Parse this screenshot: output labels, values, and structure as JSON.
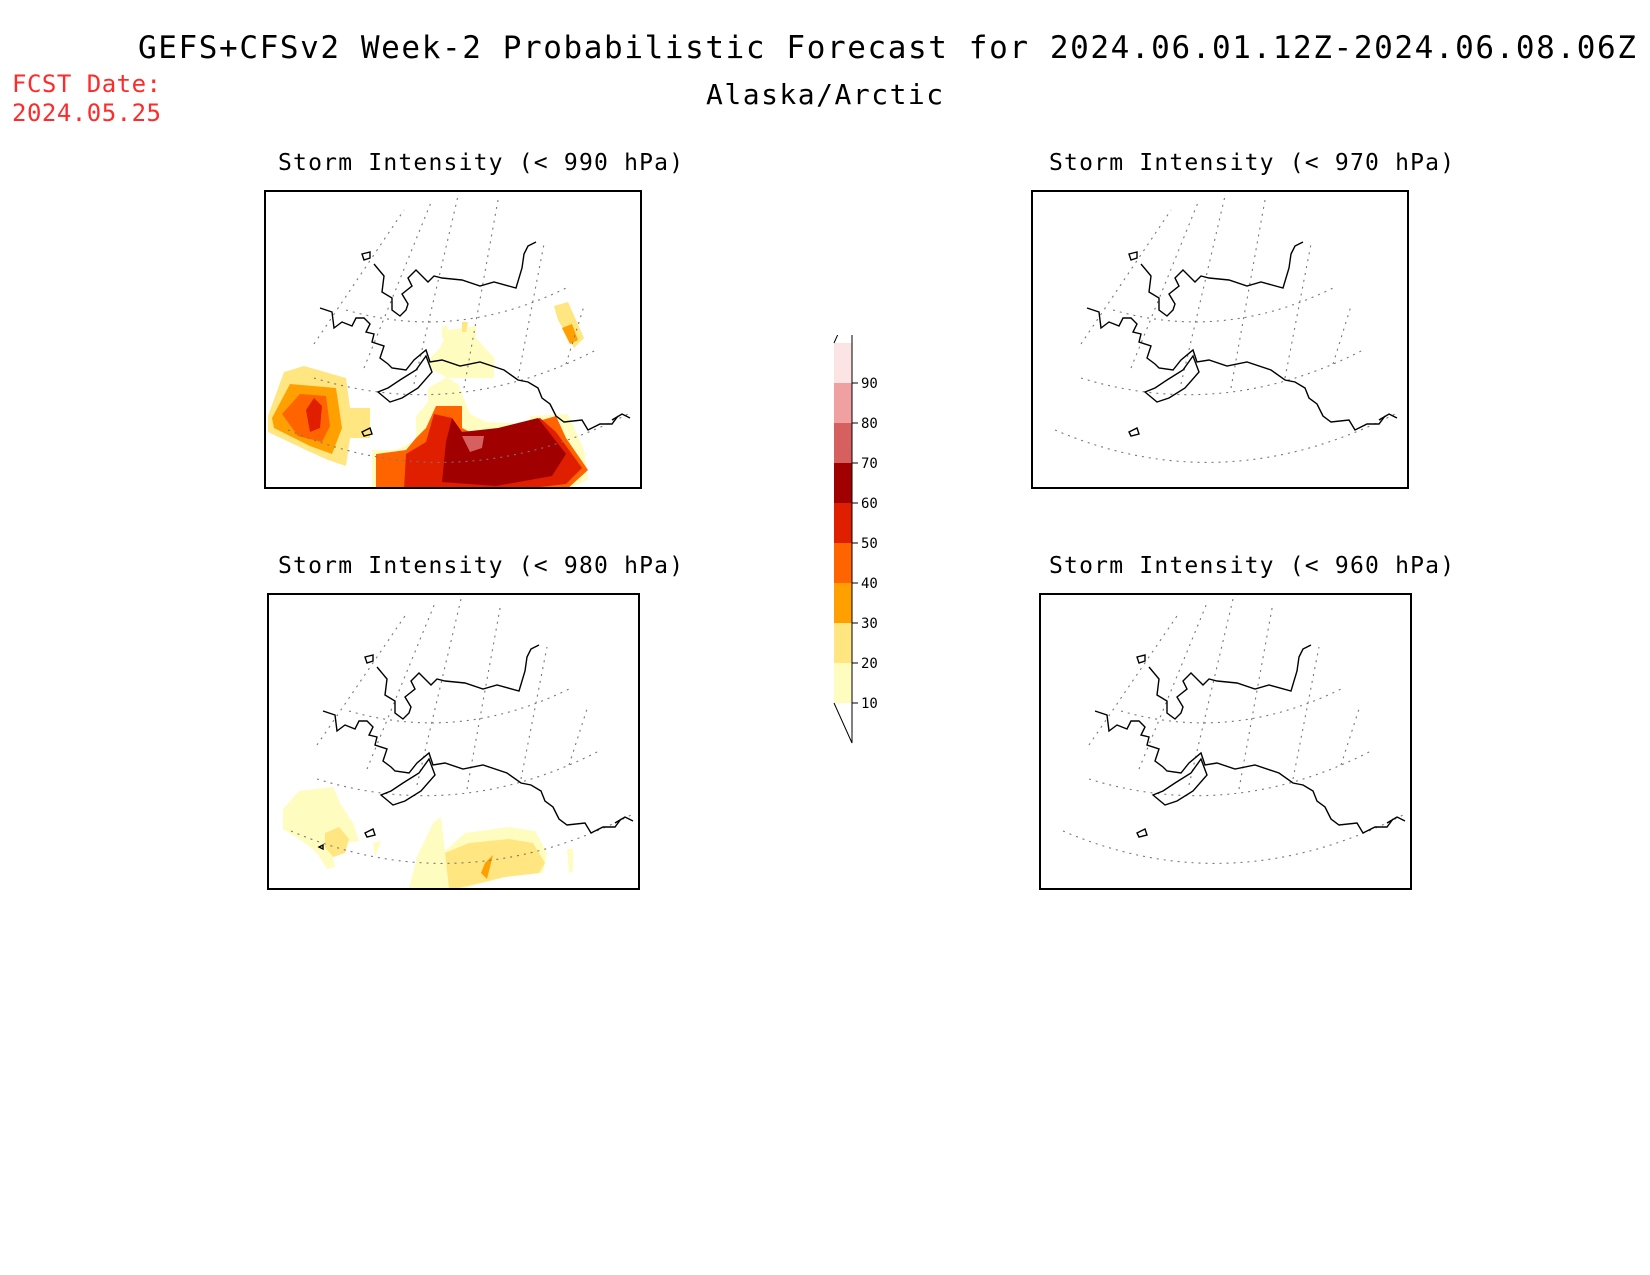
{
  "title": "GEFS+CFSv2 Week-2 Probabilistic Forecast for 2024.06.01.12Z-2024.06.08.06Z",
  "subtitle": "Alaska/Arctic",
  "fcst_date": {
    "label": "FCST Date:",
    "value": "2024.05.25"
  },
  "panels": [
    {
      "id": "p990",
      "title": "Storm Intensity (< 990 hPa)",
      "threshold_hpa": 990
    },
    {
      "id": "p970",
      "title": "Storm Intensity (< 970 hPa)",
      "threshold_hpa": 970
    },
    {
      "id": "p980",
      "title": "Storm Intensity (< 980 hPa)",
      "threshold_hpa": 980
    },
    {
      "id": "p960",
      "title": "Storm Intensity (< 960 hPa)",
      "threshold_hpa": 960
    }
  ],
  "colorbar": {
    "levels": [
      "10",
      "20",
      "30",
      "40",
      "50",
      "60",
      "70",
      "80",
      "90"
    ],
    "colors": [
      "#fffcc0",
      "#ffe680",
      "#ffa000",
      "#ff6400",
      "#e01e00",
      "#a00000",
      "#d66060",
      "#f0a0a0",
      "#fce4e4"
    ]
  },
  "colors": {
    "fcst_date": "#ff2a2a"
  }
}
